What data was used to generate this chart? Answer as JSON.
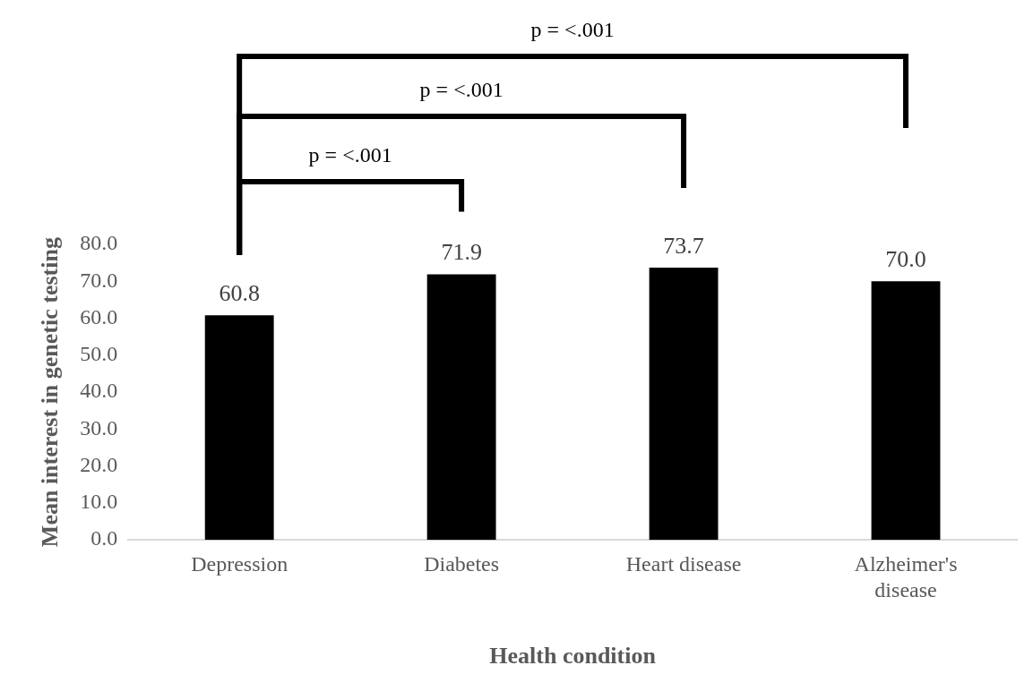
{
  "chart_data": {
    "type": "bar",
    "xlabel": "Health condition",
    "ylabel": "Mean interest in genetic testing",
    "categories": [
      "Depression",
      "Diabetes",
      "Heart disease",
      "Alzheimer's disease"
    ],
    "values": [
      60.8,
      71.9,
      73.7,
      70.0
    ],
    "color": "#000000",
    "ylim": [
      0,
      80
    ],
    "yticks": [
      {
        "value": 0,
        "label": "0.0"
      },
      {
        "value": 10,
        "label": "10.0"
      },
      {
        "value": 20,
        "label": "20.0"
      },
      {
        "value": 30,
        "label": "30.0"
      },
      {
        "value": 40,
        "label": "40.0"
      },
      {
        "value": 50,
        "label": "50.0"
      },
      {
        "value": 60,
        "label": "60.0"
      },
      {
        "value": 70,
        "label": "70.0"
      },
      {
        "value": 80,
        "label": "80.0"
      }
    ],
    "grid": false,
    "legend": false,
    "data_labels": true,
    "value_labels": [
      "60.8",
      "71.9",
      "73.7",
      "70.0"
    ],
    "annotations": [
      "p = <.001",
      "p = <.001",
      "p = <.001"
    ]
  }
}
